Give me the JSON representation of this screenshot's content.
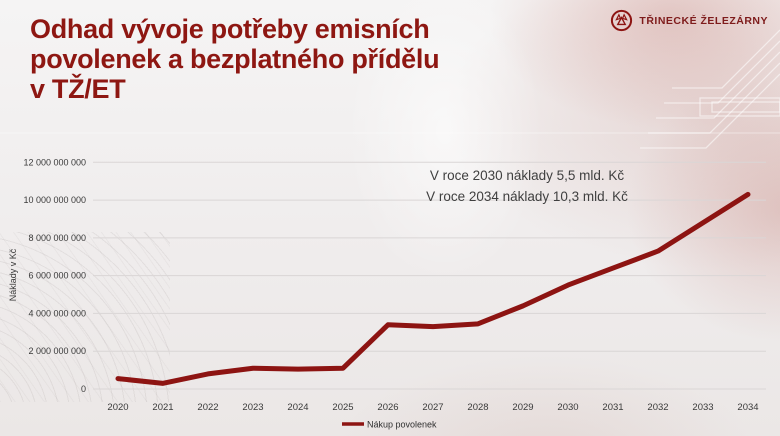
{
  "header": {
    "title_lines": [
      "Odhad vývoje potřeby emisních",
      "povolenek a bezplatného přídělu",
      "v TŽ/ET"
    ],
    "logo_text": "TŘINECKÉ ŽELEZÁRNY"
  },
  "colors": {
    "brand_red": "#8e1712",
    "line_red": "#8d1412",
    "axis_text": "#3a3a3a",
    "gridline": "#dad6d6"
  },
  "chart_data": {
    "type": "line",
    "title": "",
    "xlabel": "",
    "ylabel": "Náklady v Kč",
    "x": [
      2020,
      2021,
      2022,
      2023,
      2024,
      2025,
      2026,
      2027,
      2028,
      2029,
      2030,
      2031,
      2032,
      2033,
      2034
    ],
    "series": [
      {
        "name": "Nákup povolenek",
        "color": "#8d1412",
        "values": [
          550000000,
          300000000,
          800000000,
          1100000000,
          1050000000,
          1100000000,
          3400000000,
          3300000000,
          3450000000,
          4400000000,
          5500000000,
          6400000000,
          7300000000,
          8800000000,
          10300000000
        ]
      }
    ],
    "ylim": [
      0,
      12000000000
    ],
    "ytick_step": 2000000000,
    "grid": true,
    "legend_position": "bottom",
    "annotations": [
      "V roce 2030 náklady 5,5 mld. Kč",
      "V roce 2034 náklady 10,3 mld. Kč"
    ]
  }
}
